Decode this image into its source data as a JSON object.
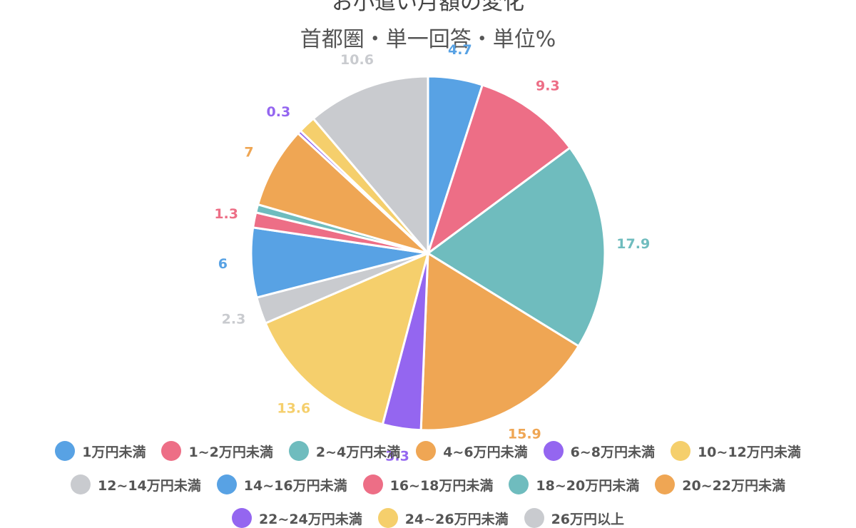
{
  "title": "お小遣い月額の変化",
  "subtitle": "首都圏・単一回答・単位%",
  "chart_data": {
    "type": "pie",
    "categories": [
      "1万円未満",
      "1~2万円未満",
      "2~4万円未満",
      "4~6万円未満",
      "6~8万円未満",
      "10~12万円未満",
      "12~14万円未満",
      "14~16万円未満",
      "16~18万円未満",
      "18~20万円未満",
      "20~22万円未満",
      "22~24万円未満",
      "24~26万円未満",
      "26万円以上"
    ],
    "values": [
      4.7,
      9.3,
      17.9,
      15.9,
      3.3,
      13.6,
      2.3,
      6,
      1.3,
      0.7,
      7,
      0.3,
      1.5,
      10.6
    ],
    "value_labels": [
      "4.7",
      "9.3",
      "17.9",
      "15.9",
      "3.3",
      "13.6",
      "2.3",
      "6",
      "1.3",
      "",
      "7",
      "0.3",
      "",
      "10.6"
    ],
    "colors": [
      "#58a2e4",
      "#ed6e86",
      "#6fbcbe",
      "#efa654",
      "#9466f0",
      "#f5cf6c",
      "#c9cbcf",
      "#58a2e4",
      "#ed6e86",
      "#6fbcbe",
      "#efa654",
      "#9466f0",
      "#f5cf6c",
      "#c9cbcf"
    ],
    "legend_position": "bottom"
  }
}
